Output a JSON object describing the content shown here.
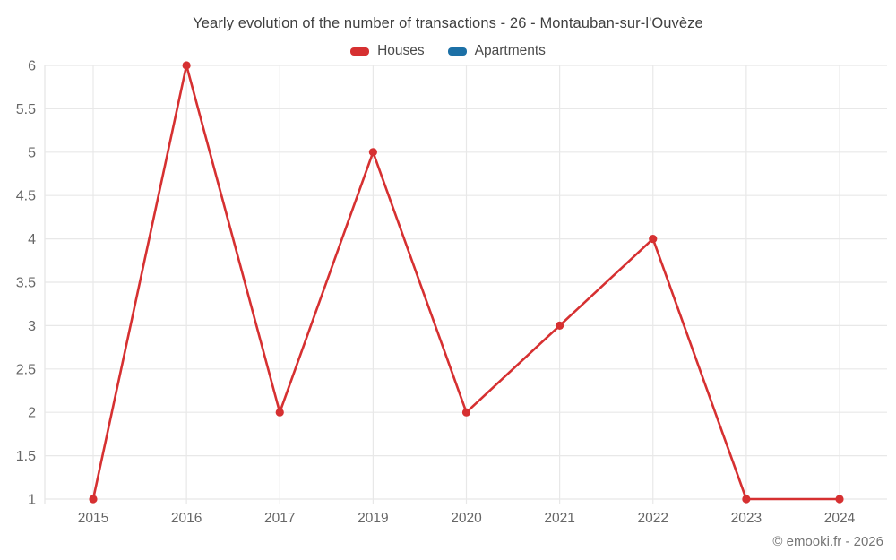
{
  "title": "Yearly evolution of the number of transactions - 26 - Montauban-sur-l'Ouvèze",
  "legend": {
    "items": [
      {
        "label": "Houses",
        "color": "#d63031"
      },
      {
        "label": "Apartments",
        "color": "#1c70a6"
      }
    ]
  },
  "footer": {
    "copyright": "© emooki.fr - 2026"
  },
  "colors": {
    "background": "#ffffff",
    "title_text": "#3f3f3f",
    "legend_text": "#4a4a4a",
    "axis_text": "#666666",
    "gridline": "#e8e8e8",
    "footer_text": "#757575",
    "houses_red": "#d63031",
    "apartments_blue": "#1c70a6"
  },
  "chart_data": {
    "type": "line",
    "title": "Yearly evolution of the number of transactions - 26 - Montauban-sur-l'Ouvèze",
    "categories": [
      "2015",
      "2016",
      "2017",
      "2019",
      "2020",
      "2021",
      "2022",
      "2023",
      "2024"
    ],
    "series": [
      {
        "name": "Houses",
        "color": "#d63031",
        "values": [
          1,
          6,
          2,
          5,
          2,
          3,
          4,
          1,
          1
        ]
      },
      {
        "name": "Apartments",
        "color": "#1c70a6",
        "values": []
      }
    ],
    "xlabel": "",
    "ylabel": "",
    "ylim": [
      1,
      6
    ],
    "yticks": [
      1,
      1.5,
      2,
      2.5,
      3,
      3.5,
      4,
      4.5,
      5,
      5.5,
      6
    ],
    "grid": true,
    "legend_position": "top",
    "marker": "circle"
  }
}
